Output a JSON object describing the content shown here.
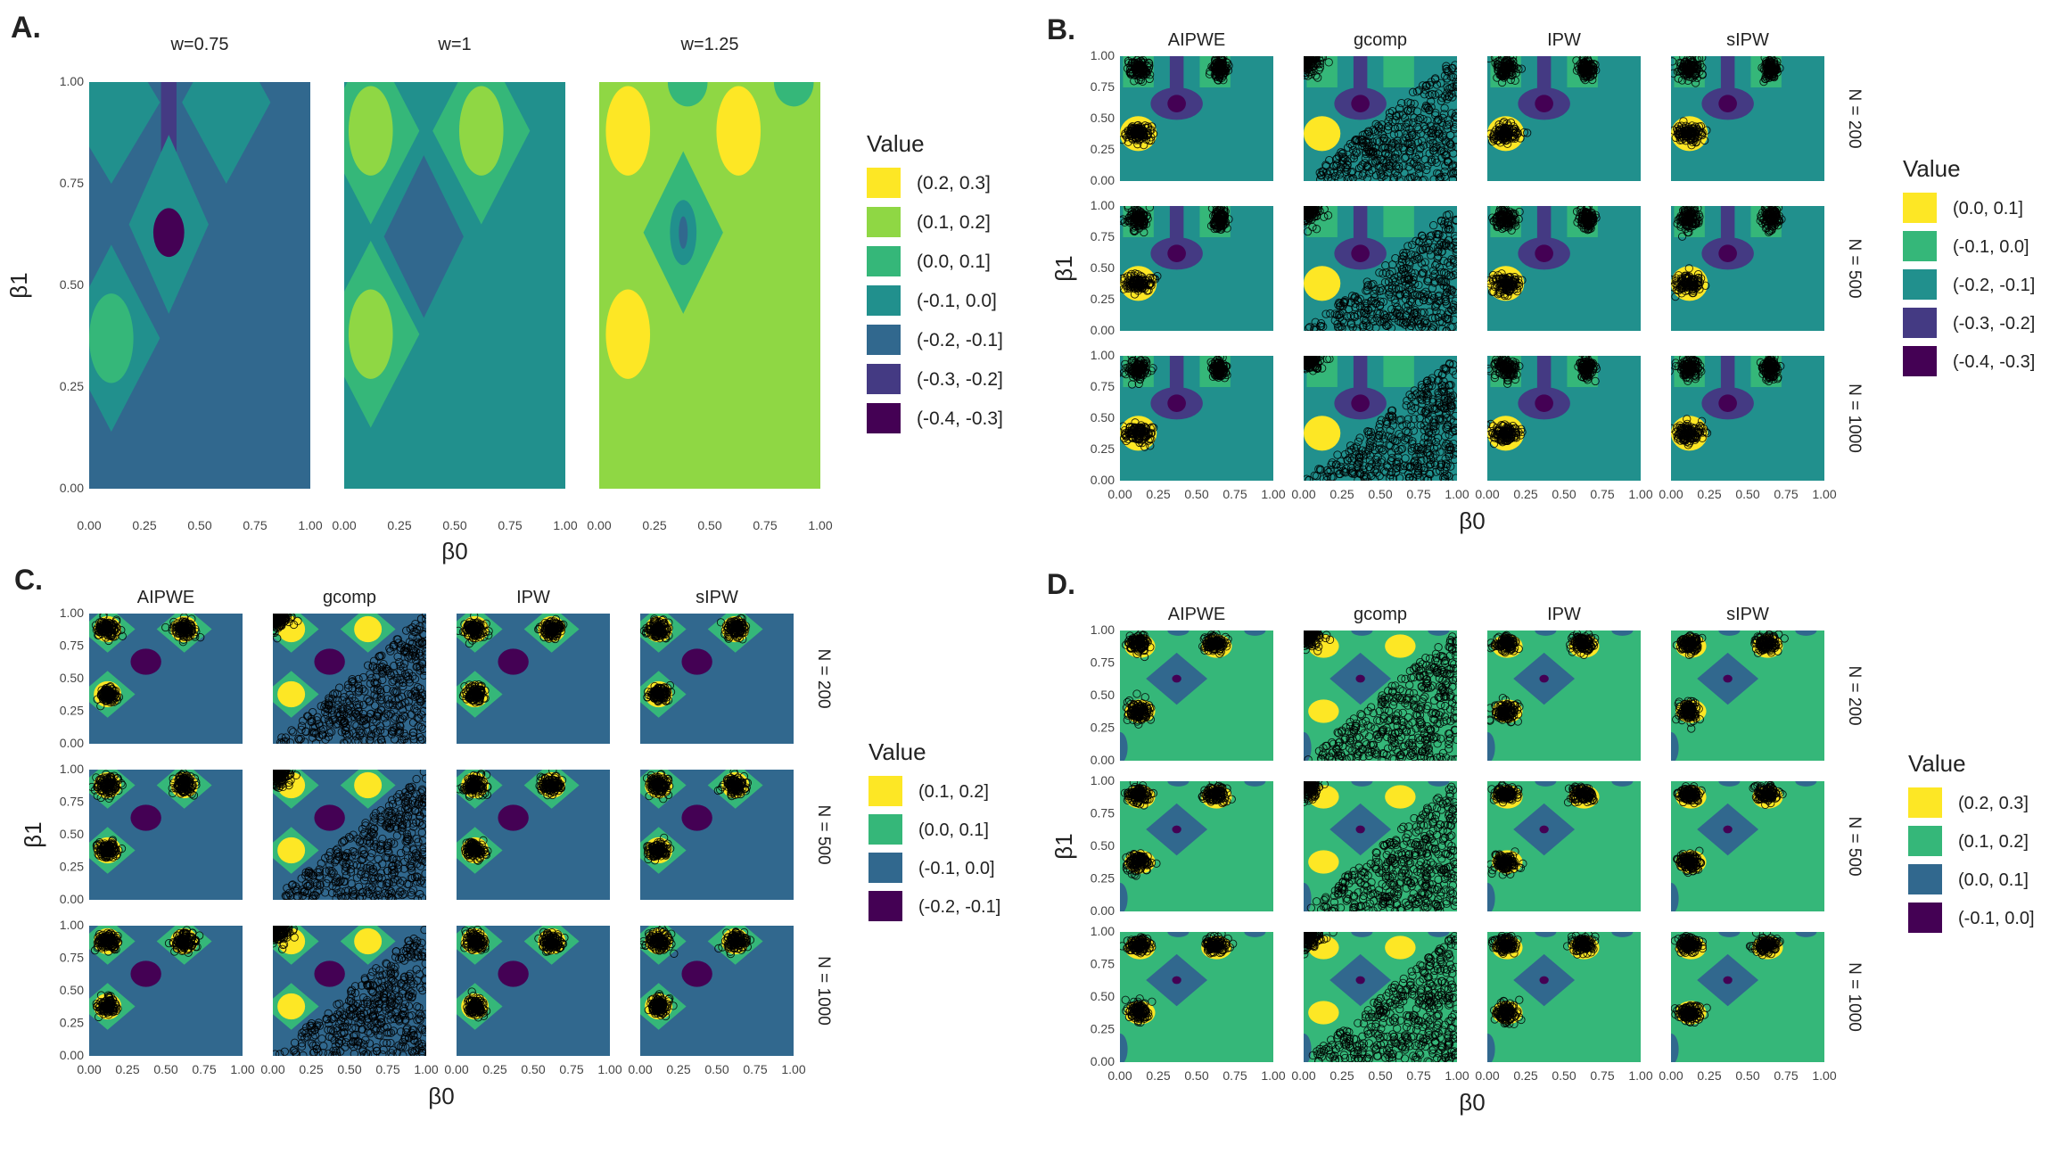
{
  "panel_labels": {
    "A": "A.",
    "B": "B.",
    "C": "C.",
    "D": "D."
  },
  "axis_symbols": {
    "x": "β0",
    "y": "β1"
  },
  "colors": {
    "bin_0": "#440154",
    "bin_1": "#443a83",
    "bin_2": "#31688e",
    "bin_3": "#21908d",
    "bin_4": "#35b779",
    "bin_5": "#8fd744",
    "bin_6": "#fde725",
    "points": "#000000"
  },
  "chart_data": [
    {
      "id": "A",
      "type": "heatmap",
      "title": "A.",
      "facet_columns": [
        "w=0.75",
        "w=1",
        "w=1.25"
      ],
      "facet_rows": [],
      "xlabel": "β0",
      "ylabel": "β1",
      "xlim": [
        0,
        1
      ],
      "ylim": [
        0,
        1
      ],
      "x_ticks": [
        "0.00",
        "0.25",
        "0.50",
        "0.75",
        "1.00"
      ],
      "y_ticks": [
        "0.00",
        "0.25",
        "0.50",
        "0.75",
        "1.00"
      ],
      "legend_title": "Value",
      "legend": [
        "(0.2, 0.3]",
        "(0.1, 0.2]",
        "(0.0, 0.1]",
        "(-0.1, 0.0]",
        "(-0.2, -0.1]",
        "(-0.3, -0.2]",
        "(-0.4, -0.3]"
      ],
      "legend_color_bins": [
        6,
        5,
        4,
        3,
        2,
        1,
        0
      ],
      "panels": [
        {
          "facet": "w=0.75",
          "background_bin": 2,
          "regions": [
            {
              "shape": "bar",
              "x": 0.36,
              "y": 0.5,
              "y_top": 1.0,
              "w": 0.07,
              "bin": 1
            },
            {
              "shape": "diamond",
              "x": 0.36,
              "y": 0.65,
              "rx": 0.18,
              "ry": 0.22,
              "bin": 3
            },
            {
              "shape": "ellipse",
              "x": 0.36,
              "y": 0.63,
              "rx": 0.07,
              "ry": 0.06,
              "bin": 0
            },
            {
              "shape": "diamond",
              "x": 0.1,
              "y": 0.37,
              "rx": 0.22,
              "ry": 0.23,
              "bin": 3
            },
            {
              "shape": "ellipse",
              "x": 0.1,
              "y": 0.37,
              "rx": 0.1,
              "ry": 0.11,
              "bin": 4
            },
            {
              "shape": "diamond",
              "x": 0.1,
              "y": 0.95,
              "rx": 0.22,
              "ry": 0.2,
              "bin": 3
            },
            {
              "shape": "diamond",
              "x": 0.62,
              "y": 0.95,
              "rx": 0.2,
              "ry": 0.2,
              "bin": 3
            }
          ]
        },
        {
          "facet": "w=1",
          "background_bin": 3,
          "regions": [
            {
              "shape": "diamond",
              "x": 0.36,
              "y": 0.62,
              "rx": 0.18,
              "ry": 0.2,
              "bin": 2
            },
            {
              "shape": "diamond",
              "x": 0.12,
              "y": 0.88,
              "rx": 0.22,
              "ry": 0.23,
              "bin": 4
            },
            {
              "shape": "ellipse",
              "x": 0.12,
              "y": 0.88,
              "rx": 0.1,
              "ry": 0.11,
              "bin": 5
            },
            {
              "shape": "diamond",
              "x": 0.62,
              "y": 0.88,
              "rx": 0.22,
              "ry": 0.23,
              "bin": 4
            },
            {
              "shape": "ellipse",
              "x": 0.62,
              "y": 0.88,
              "rx": 0.1,
              "ry": 0.11,
              "bin": 5
            },
            {
              "shape": "diamond",
              "x": 0.12,
              "y": 0.38,
              "rx": 0.22,
              "ry": 0.23,
              "bin": 4
            },
            {
              "shape": "ellipse",
              "x": 0.12,
              "y": 0.38,
              "rx": 0.1,
              "ry": 0.11,
              "bin": 5
            }
          ]
        },
        {
          "facet": "w=1.25",
          "background_bin": 5,
          "regions": [
            {
              "shape": "diamond",
              "x": 0.38,
              "y": 0.63,
              "rx": 0.18,
              "ry": 0.2,
              "bin": 4
            },
            {
              "shape": "ellipse",
              "x": 0.38,
              "y": 0.63,
              "rx": 0.06,
              "ry": 0.08,
              "bin": 3
            },
            {
              "shape": "ellipse",
              "x": 0.38,
              "y": 0.63,
              "rx": 0.02,
              "ry": 0.04,
              "bin": 2
            },
            {
              "shape": "ellipse",
              "x": 0.13,
              "y": 0.88,
              "rx": 0.1,
              "ry": 0.11,
              "bin": 6
            },
            {
              "shape": "ellipse",
              "x": 0.63,
              "y": 0.88,
              "rx": 0.1,
              "ry": 0.11,
              "bin": 6
            },
            {
              "shape": "ellipse",
              "x": 0.13,
              "y": 0.38,
              "rx": 0.1,
              "ry": 0.11,
              "bin": 6
            },
            {
              "shape": "ellipse",
              "x": 0.4,
              "y": 1.0,
              "rx": 0.09,
              "ry": 0.06,
              "bin": 4
            },
            {
              "shape": "ellipse",
              "x": 0.88,
              "y": 1.0,
              "rx": 0.09,
              "ry": 0.06,
              "bin": 4
            }
          ]
        }
      ]
    },
    {
      "id": "B",
      "type": "heatmap",
      "title": "B.",
      "facet_columns": [
        "AIPWE",
        "gcomp",
        "IPW",
        "sIPW"
      ],
      "facet_rows": [
        "N = 200",
        "N = 500",
        "N = 1000"
      ],
      "xlabel": "β0",
      "ylabel": "β1",
      "xlim": [
        0,
        1
      ],
      "ylim": [
        0,
        1
      ],
      "x_ticks": [
        "0.00",
        "0.25",
        "0.50",
        "0.75",
        "1.00"
      ],
      "y_ticks": [
        "0.00",
        "0.25",
        "0.50",
        "0.75",
        "1.00"
      ],
      "legend_title": "Value",
      "legend": [
        "(0.0, 0.1]",
        "(-0.1, 0.0]",
        "(-0.2, -0.1]",
        "(-0.3, -0.2]",
        "(-0.4, -0.3]"
      ],
      "legend_color_bins": [
        6,
        4,
        3,
        1,
        0
      ],
      "heat": {
        "background_bin": 3,
        "regions": [
          {
            "shape": "bar",
            "x": 0.37,
            "y": 0.55,
            "y_top": 1.0,
            "w": 0.09,
            "bin": 1
          },
          {
            "shape": "ellipse",
            "x": 0.37,
            "y": 0.62,
            "rx": 0.17,
            "ry": 0.13,
            "bin": 1
          },
          {
            "shape": "ellipse",
            "x": 0.37,
            "y": 0.62,
            "rx": 0.06,
            "ry": 0.07,
            "bin": 0
          },
          {
            "shape": "ellipse",
            "x": 0.12,
            "y": 0.38,
            "rx": 0.12,
            "ry": 0.14,
            "bin": 6
          },
          {
            "shape": "bar",
            "x": 0.12,
            "y": 0.75,
            "y_top": 1.0,
            "w": 0.2,
            "bin": 4
          },
          {
            "shape": "bar",
            "x": 0.62,
            "y": 0.75,
            "y_top": 1.0,
            "w": 0.2,
            "bin": 4
          }
        ]
      },
      "methods": {
        "AIPWE": {
          "type": "clusters",
          "clusters": [
            {
              "x": 0.12,
              "y": 0.38,
              "sx": 0.07,
              "sy": 0.06
            },
            {
              "x": 0.12,
              "y": 0.9,
              "sx": 0.06,
              "sy": 0.07
            },
            {
              "x": 0.65,
              "y": 0.9,
              "sx": 0.04,
              "sy": 0.07
            }
          ]
        },
        "gcomp": {
          "type": "triangle"
        },
        "IPW": {
          "type": "clusters",
          "clusters": [
            {
              "x": 0.12,
              "y": 0.38,
              "sx": 0.07,
              "sy": 0.06
            },
            {
              "x": 0.12,
              "y": 0.9,
              "sx": 0.06,
              "sy": 0.07
            },
            {
              "x": 0.65,
              "y": 0.9,
              "sx": 0.04,
              "sy": 0.07
            }
          ]
        },
        "sIPW": {
          "type": "clusters",
          "clusters": [
            {
              "x": 0.12,
              "y": 0.38,
              "sx": 0.07,
              "sy": 0.06
            },
            {
              "x": 0.12,
              "y": 0.9,
              "sx": 0.06,
              "sy": 0.07
            },
            {
              "x": 0.65,
              "y": 0.9,
              "sx": 0.04,
              "sy": 0.07
            }
          ]
        }
      }
    },
    {
      "id": "C",
      "type": "heatmap",
      "title": "C.",
      "facet_columns": [
        "AIPWE",
        "gcomp",
        "IPW",
        "sIPW"
      ],
      "facet_rows": [
        "N = 200",
        "N = 500",
        "N = 1000"
      ],
      "xlabel": "β0",
      "ylabel": "β1",
      "xlim": [
        0,
        1
      ],
      "ylim": [
        0,
        1
      ],
      "x_ticks": [
        "0.00",
        "0.25",
        "0.50",
        "0.75",
        "1.00"
      ],
      "y_ticks": [
        "0.00",
        "0.25",
        "0.50",
        "0.75",
        "1.00"
      ],
      "legend_title": "Value",
      "legend": [
        "(0.1, 0.2]",
        "(0.0, 0.1]",
        "(-0.1, 0.0]",
        "(-0.2, -0.1]"
      ],
      "legend_color_bins": [
        6,
        4,
        2,
        0
      ],
      "heat": {
        "background_bin": 2,
        "regions": [
          {
            "shape": "diamond",
            "x": 0.12,
            "y": 0.88,
            "rx": 0.18,
            "ry": 0.18,
            "bin": 4
          },
          {
            "shape": "diamond",
            "x": 0.62,
            "y": 0.88,
            "rx": 0.18,
            "ry": 0.18,
            "bin": 4
          },
          {
            "shape": "diamond",
            "x": 0.12,
            "y": 0.38,
            "rx": 0.18,
            "ry": 0.18,
            "bin": 4
          },
          {
            "shape": "ellipse",
            "x": 0.12,
            "y": 0.88,
            "rx": 0.09,
            "ry": 0.1,
            "bin": 6
          },
          {
            "shape": "ellipse",
            "x": 0.62,
            "y": 0.88,
            "rx": 0.09,
            "ry": 0.1,
            "bin": 6
          },
          {
            "shape": "ellipse",
            "x": 0.12,
            "y": 0.38,
            "rx": 0.09,
            "ry": 0.1,
            "bin": 6
          },
          {
            "shape": "ellipse",
            "x": 0.37,
            "y": 0.63,
            "rx": 0.1,
            "ry": 0.1,
            "bin": 0
          }
        ]
      },
      "methods": {
        "AIPWE": {
          "type": "clusters",
          "clusters": [
            {
              "x": 0.12,
              "y": 0.88,
              "sx": 0.06,
              "sy": 0.06
            },
            {
              "x": 0.62,
              "y": 0.88,
              "sx": 0.06,
              "sy": 0.06
            },
            {
              "x": 0.12,
              "y": 0.38,
              "sx": 0.05,
              "sy": 0.05
            }
          ]
        },
        "gcomp": {
          "type": "triangle"
        },
        "IPW": {
          "type": "clusters",
          "clusters": [
            {
              "x": 0.12,
              "y": 0.88,
              "sx": 0.06,
              "sy": 0.06
            },
            {
              "x": 0.62,
              "y": 0.88,
              "sx": 0.06,
              "sy": 0.06
            },
            {
              "x": 0.12,
              "y": 0.38,
              "sx": 0.05,
              "sy": 0.05
            }
          ]
        },
        "sIPW": {
          "type": "clusters",
          "clusters": [
            {
              "x": 0.12,
              "y": 0.88,
              "sx": 0.06,
              "sy": 0.06
            },
            {
              "x": 0.62,
              "y": 0.88,
              "sx": 0.06,
              "sy": 0.06
            },
            {
              "x": 0.12,
              "y": 0.38,
              "sx": 0.05,
              "sy": 0.05
            }
          ]
        }
      }
    },
    {
      "id": "D",
      "type": "heatmap",
      "title": "D.",
      "facet_columns": [
        "AIPWE",
        "gcomp",
        "IPW",
        "sIPW"
      ],
      "facet_rows": [
        "N = 200",
        "N = 500",
        "N = 1000"
      ],
      "xlabel": "β0",
      "ylabel": "β1",
      "xlim": [
        0,
        1
      ],
      "ylim": [
        0,
        1
      ],
      "x_ticks": [
        "0.00",
        "0.25",
        "0.50",
        "0.75",
        "1.00"
      ],
      "y_ticks": [
        "0.00",
        "0.25",
        "0.50",
        "0.75",
        "1.00"
      ],
      "legend_title": "Value",
      "legend": [
        "(0.2, 0.3]",
        "(0.1, 0.2]",
        "(0.0, 0.1]",
        "(-0.1, 0.0]"
      ],
      "legend_color_bins": [
        6,
        4,
        2,
        0
      ],
      "heat": {
        "background_bin": 4,
        "regions": [
          {
            "shape": "diamond",
            "x": 0.37,
            "y": 0.63,
            "rx": 0.2,
            "ry": 0.2,
            "bin": 2
          },
          {
            "shape": "ellipse",
            "x": 0.37,
            "y": 0.63,
            "rx": 0.03,
            "ry": 0.03,
            "bin": 0
          },
          {
            "shape": "ellipse",
            "x": 0.13,
            "y": 0.88,
            "rx": 0.1,
            "ry": 0.09,
            "bin": 6
          },
          {
            "shape": "ellipse",
            "x": 0.63,
            "y": 0.88,
            "rx": 0.1,
            "ry": 0.09,
            "bin": 6
          },
          {
            "shape": "ellipse",
            "x": 0.13,
            "y": 0.38,
            "rx": 0.1,
            "ry": 0.09,
            "bin": 6
          },
          {
            "shape": "ellipse",
            "x": 0.0,
            "y": 0.1,
            "rx": 0.05,
            "ry": 0.12,
            "bin": 2
          },
          {
            "shape": "ellipse",
            "x": 0.38,
            "y": 1.0,
            "rx": 0.07,
            "ry": 0.04,
            "bin": 2
          },
          {
            "shape": "ellipse",
            "x": 0.88,
            "y": 1.0,
            "rx": 0.07,
            "ry": 0.04,
            "bin": 2
          }
        ]
      },
      "methods": {
        "AIPWE": {
          "type": "clusters",
          "clusters": [
            {
              "x": 0.12,
              "y": 0.9,
              "sx": 0.06,
              "sy": 0.05
            },
            {
              "x": 0.62,
              "y": 0.9,
              "sx": 0.06,
              "sy": 0.05
            },
            {
              "x": 0.12,
              "y": 0.38,
              "sx": 0.06,
              "sy": 0.06
            }
          ]
        },
        "gcomp": {
          "type": "triangle"
        },
        "IPW": {
          "type": "clusters",
          "clusters": [
            {
              "x": 0.12,
              "y": 0.9,
              "sx": 0.06,
              "sy": 0.05
            },
            {
              "x": 0.62,
              "y": 0.9,
              "sx": 0.06,
              "sy": 0.05
            },
            {
              "x": 0.12,
              "y": 0.38,
              "sx": 0.06,
              "sy": 0.06
            }
          ]
        },
        "sIPW": {
          "type": "clusters",
          "clusters": [
            {
              "x": 0.12,
              "y": 0.9,
              "sx": 0.06,
              "sy": 0.05
            },
            {
              "x": 0.62,
              "y": 0.9,
              "sx": 0.06,
              "sy": 0.05
            },
            {
              "x": 0.12,
              "y": 0.38,
              "sx": 0.06,
              "sy": 0.06
            }
          ]
        }
      }
    }
  ]
}
